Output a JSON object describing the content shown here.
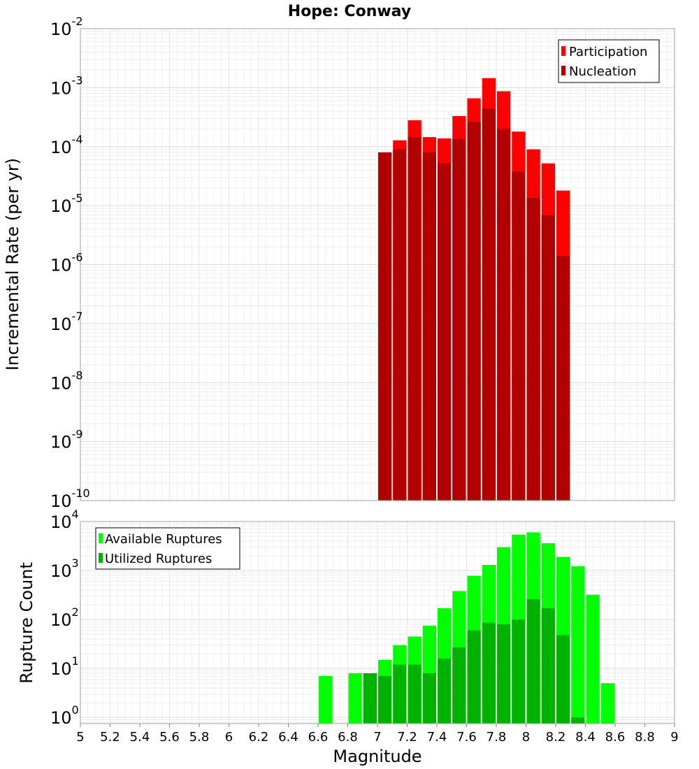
{
  "title": "Hope: Conway",
  "chart_data": [
    {
      "type": "bar",
      "ylabel": "Incremental Rate (per yr)",
      "yscale": "log",
      "ylim": [
        1e-10,
        0.01
      ],
      "ytick_exponents": [
        "-10",
        "-9",
        "-8",
        "-7",
        "-6",
        "-5",
        "-4",
        "-3",
        "-2"
      ],
      "xlim": [
        5,
        9
      ],
      "bar_width": 0.1,
      "grid": true,
      "legend_position": "top-right",
      "series": [
        {
          "name": "Participation",
          "color": "#ff0000",
          "x": [
            7.05,
            7.15,
            7.25,
            7.35,
            7.45,
            7.55,
            7.65,
            7.75,
            7.85,
            7.95,
            8.05,
            8.15,
            8.25
          ],
          "values": [
            8e-05,
            0.000128,
            0.00028,
            0.000145,
            0.000138,
            0.00033,
            0.00066,
            0.00145,
            0.00087,
            0.00018,
            9e-05,
            5.2e-05,
            1.8e-05
          ]
        },
        {
          "name": "Nucleation",
          "color": "#b20000",
          "x": [
            7.05,
            7.15,
            7.25,
            7.35,
            7.45,
            7.55,
            7.65,
            7.75,
            7.85,
            7.95,
            8.05,
            8.15,
            8.25
          ],
          "values": [
            8e-05,
            9e-05,
            0.000145,
            8e-05,
            5.3e-05,
            0.000135,
            0.00026,
            0.00044,
            0.0002,
            3.8e-05,
            1.35e-05,
            6.9e-06,
            1.4e-06
          ]
        }
      ]
    },
    {
      "type": "bar",
      "xlabel": "Magnitude",
      "ylabel": "Rupture Count",
      "yscale": "log",
      "ylim": [
        0.75,
        10000
      ],
      "ytick_exponents": [
        "0",
        "1",
        "2",
        "3",
        "4"
      ],
      "xlim": [
        5,
        9
      ],
      "xticks": [
        "5",
        "5.2",
        "5.4",
        "5.6",
        "5.8",
        "6",
        "6.2",
        "6.4",
        "6.6",
        "6.8",
        "7",
        "7.2",
        "7.4",
        "7.6",
        "7.8",
        "8",
        "8.2",
        "8.4",
        "8.6",
        "8.8",
        "9"
      ],
      "bar_width": 0.1,
      "grid": true,
      "legend_position": "top-left",
      "series": [
        {
          "name": "Available Ruptures",
          "color": "#00ff00",
          "x": [
            6.65,
            6.85,
            6.95,
            7.05,
            7.15,
            7.25,
            7.35,
            7.45,
            7.55,
            7.65,
            7.75,
            7.85,
            7.95,
            8.05,
            8.15,
            8.25,
            8.35,
            8.45,
            8.55
          ],
          "values": [
            7,
            8,
            8,
            15,
            30,
            45,
            75,
            170,
            380,
            780,
            1300,
            3000,
            5400,
            6000,
            3600,
            1900,
            1220,
            320,
            5
          ]
        },
        {
          "name": "Utilized Ruptures",
          "color": "#00b200",
          "x": [
            6.95,
            7.05,
            7.15,
            7.25,
            7.35,
            7.45,
            7.55,
            7.65,
            7.75,
            7.85,
            7.95,
            8.05,
            8.15,
            8.25,
            8.35
          ],
          "values": [
            8,
            7,
            12,
            12,
            8,
            16,
            27,
            60,
            86,
            80,
            100,
            260,
            170,
            48,
            1
          ]
        }
      ]
    }
  ]
}
